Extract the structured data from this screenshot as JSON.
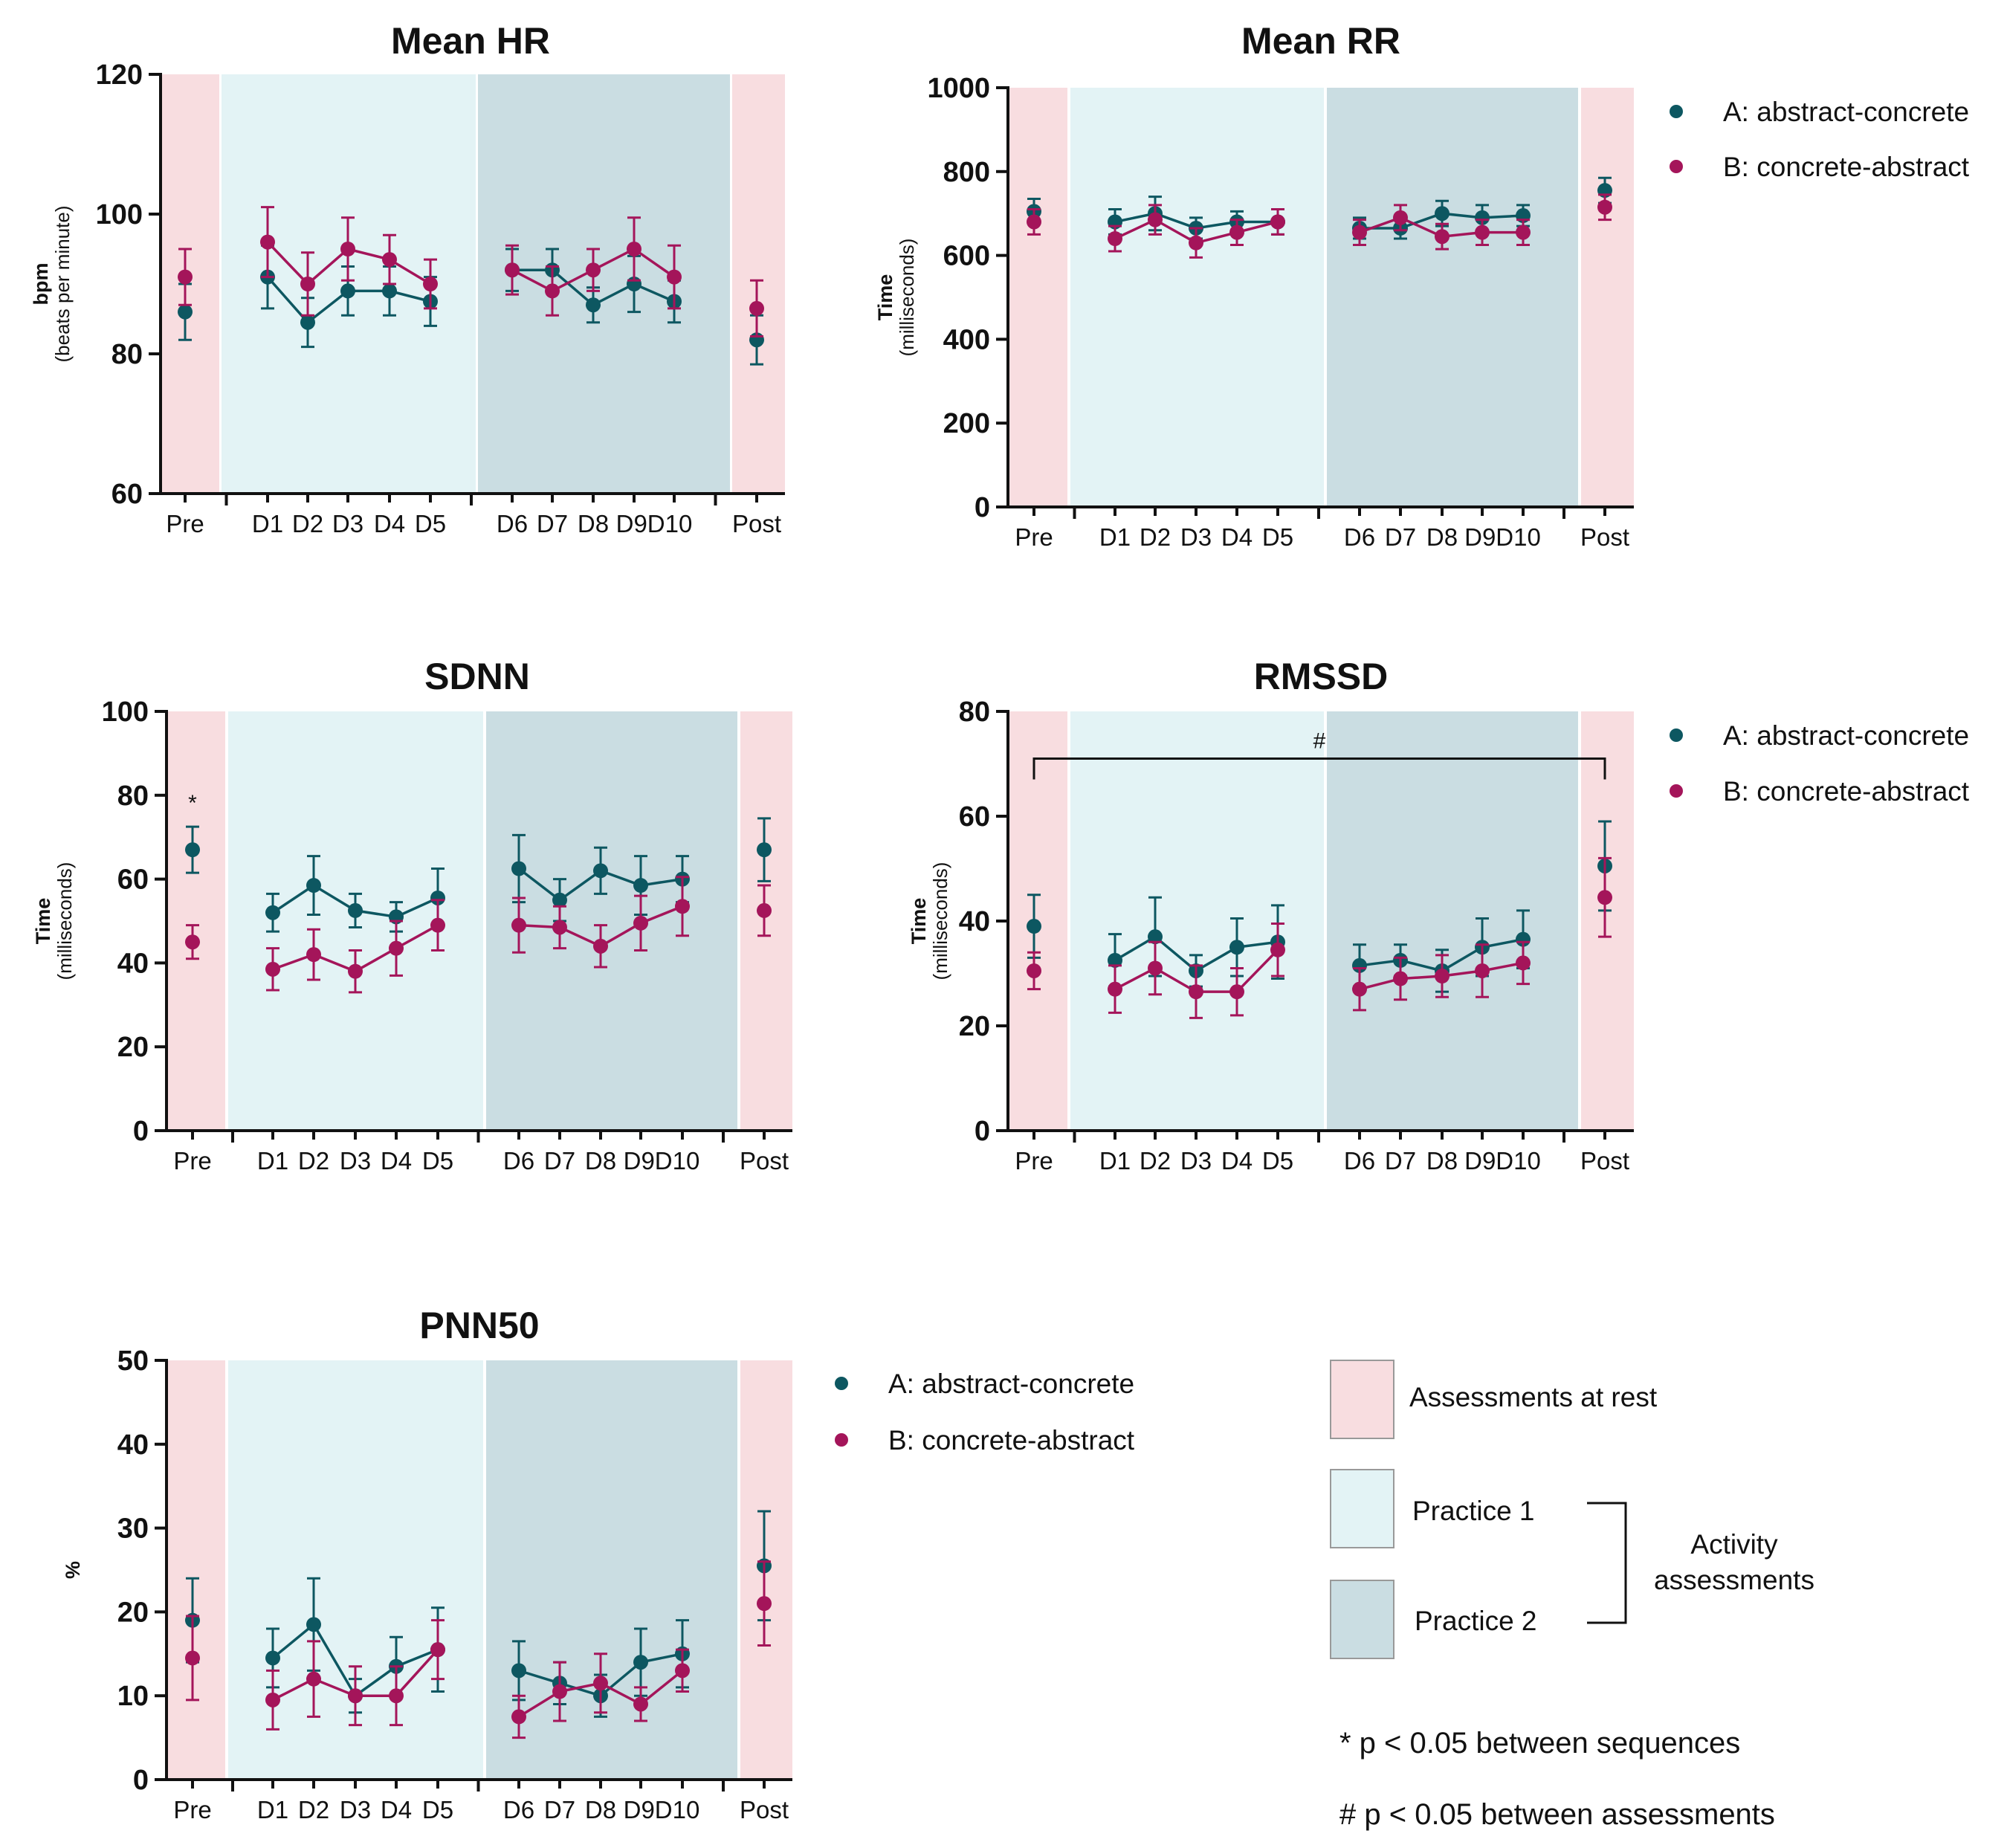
{
  "colors": {
    "rest_band": "#f8dde0",
    "practice1_band": "#e3f3f5",
    "practice2_band": "#cadde2",
    "series_a": "#0d5761",
    "series_b": "#a4155a",
    "axis": "#111111"
  },
  "legend": {
    "series": [
      {
        "name": "A: abstract-concrete",
        "color_key": "series_a"
      },
      {
        "name": "B: concrete-abstract",
        "color_key": "series_b"
      }
    ],
    "bands": {
      "rest": "Assessments at rest",
      "practice1": "Practice 1",
      "practice2": "Practice 2",
      "activity_line1": "Activity",
      "activity_line2": "assessments"
    },
    "notes": {
      "star": "* p < 0.05 between sequences",
      "hash": "# p < 0.05 between assessments"
    }
  },
  "chart_data": [
    {
      "type": "line",
      "title": "Mean HR",
      "ylabel": "bpm",
      "ylabel_sub": "(beats per minute)",
      "ylim": [
        60,
        120
      ],
      "yticks": [
        60,
        80,
        100,
        120
      ],
      "categories": [
        "Pre",
        "D1",
        "D2",
        "D3",
        "D4",
        "D5",
        "D6",
        "D7",
        "D8",
        "D9",
        "D10",
        "Post"
      ],
      "tick_labels": [
        "Pre",
        "D1",
        "D2",
        "D3",
        "D4",
        "D5",
        "D6",
        "D7",
        "D8",
        "D9D10",
        "",
        "Post"
      ],
      "series": [
        {
          "name": "A: abstract-concrete",
          "values": [
            86,
            91,
            84.5,
            89,
            89,
            87.5,
            92,
            92,
            87,
            90,
            87.5,
            82
          ],
          "errors": [
            4,
            4.5,
            3.5,
            3.5,
            3.5,
            3.5,
            3,
            3,
            2.5,
            4,
            3,
            3.5
          ]
        },
        {
          "name": "B: concrete-abstract",
          "values": [
            91,
            96,
            90,
            95,
            93.5,
            90,
            92,
            89,
            92,
            95,
            91,
            86.5
          ],
          "errors": [
            4,
            5,
            4.5,
            4.5,
            3.5,
            3.5,
            3.5,
            3.5,
            3,
            4.5,
            4.5,
            4
          ]
        }
      ],
      "annotations": []
    },
    {
      "type": "line",
      "title": "Mean RR",
      "ylabel": "Time",
      "ylabel_sub": "(milliseconds)",
      "ylim": [
        0,
        1000
      ],
      "yticks": [
        0,
        200,
        400,
        600,
        800,
        1000
      ],
      "categories": [
        "Pre",
        "D1",
        "D2",
        "D3",
        "D4",
        "D5",
        "D6",
        "D7",
        "D8",
        "D9",
        "D10",
        "Post"
      ],
      "tick_labels": [
        "Pre",
        "D1",
        "D2",
        "D3",
        "D4",
        "D5",
        "D6",
        "D7",
        "D8",
        "D9D10",
        "",
        "Post"
      ],
      "series": [
        {
          "name": "A: abstract-concrete",
          "values": [
            705,
            680,
            700,
            665,
            680,
            680,
            665,
            665,
            700,
            690,
            695,
            755
          ],
          "errors": [
            30,
            30,
            40,
            25,
            25,
            30,
            25,
            25,
            30,
            30,
            25,
            30
          ]
        },
        {
          "name": "B: concrete-abstract",
          "values": [
            680,
            640,
            685,
            630,
            655,
            680,
            655,
            690,
            645,
            655,
            655,
            715
          ],
          "errors": [
            30,
            30,
            35,
            35,
            30,
            30,
            30,
            30,
            30,
            30,
            30,
            30
          ]
        }
      ],
      "annotations": []
    },
    {
      "type": "line",
      "title": "SDNN",
      "ylabel": "Time",
      "ylabel_sub": "(milliseconds)",
      "ylim": [
        0,
        100
      ],
      "yticks": [
        0,
        20,
        40,
        60,
        80,
        100
      ],
      "categories": [
        "Pre",
        "D1",
        "D2",
        "D3",
        "D4",
        "D5",
        "D6",
        "D7",
        "D8",
        "D9",
        "D10",
        "Post"
      ],
      "tick_labels": [
        "Pre",
        "D1",
        "D2",
        "D3",
        "D4",
        "D5",
        "D6",
        "D7",
        "D8",
        "D9D10",
        "",
        "Post"
      ],
      "series": [
        {
          "name": "A: abstract-concrete",
          "values": [
            67,
            52,
            58.5,
            52.5,
            51,
            55.5,
            62.5,
            55,
            62,
            58.5,
            60,
            67
          ],
          "errors": [
            5.5,
            4.5,
            7,
            4,
            3.5,
            7,
            8,
            5,
            5.5,
            7,
            5.5,
            7.5
          ]
        },
        {
          "name": "B: concrete-abstract",
          "values": [
            45,
            38.5,
            42,
            38,
            43.5,
            49,
            49,
            48.5,
            44,
            49.5,
            53.5,
            52.5
          ],
          "errors": [
            4,
            5,
            6,
            5,
            6.5,
            6,
            6.5,
            5,
            5,
            6.5,
            7,
            6
          ]
        }
      ],
      "annotations": [
        {
          "text": "*",
          "category": "Pre"
        }
      ]
    },
    {
      "type": "line",
      "title": "RMSSD",
      "ylabel": "Time",
      "ylabel_sub": "(milliseconds)",
      "ylim": [
        0,
        80
      ],
      "yticks": [
        0,
        20,
        40,
        60,
        80
      ],
      "categories": [
        "Pre",
        "D1",
        "D2",
        "D3",
        "D4",
        "D5",
        "D6",
        "D7",
        "D8",
        "D9",
        "D10",
        "Post"
      ],
      "tick_labels": [
        "Pre",
        "D1",
        "D2",
        "D3",
        "D4",
        "D5",
        "D6",
        "D7",
        "D8",
        "D9D10",
        "",
        "Post"
      ],
      "series": [
        {
          "name": "A: abstract-concrete",
          "values": [
            39,
            32.5,
            37,
            30.5,
            35,
            36,
            31.5,
            32.5,
            30.5,
            35,
            36.5,
            50.5
          ],
          "errors": [
            6,
            5,
            7.5,
            3,
            5.5,
            7,
            4,
            3,
            4,
            5.5,
            5.5,
            8.5
          ]
        },
        {
          "name": "B: concrete-abstract",
          "values": [
            30.5,
            27,
            31,
            26.5,
            26.5,
            34.5,
            27,
            29,
            29.5,
            30.5,
            32,
            44.5
          ],
          "errors": [
            3.5,
            4.5,
            5,
            5,
            4.5,
            5,
            4,
            4,
            4,
            5,
            4,
            7.5
          ]
        }
      ],
      "annotations": [
        {
          "text": "#",
          "from": "Pre",
          "to": "Post"
        }
      ]
    },
    {
      "type": "line",
      "title": "PNN50",
      "ylabel": "%",
      "ylabel_sub": "",
      "ylim": [
        0,
        50
      ],
      "yticks": [
        0,
        10,
        20,
        30,
        40,
        50
      ],
      "categories": [
        "Pre",
        "D1",
        "D2",
        "D3",
        "D4",
        "D5",
        "D6",
        "D7",
        "D8",
        "D9",
        "D10",
        "Post"
      ],
      "tick_labels": [
        "Pre",
        "D1",
        "D2",
        "D3",
        "D4",
        "D5",
        "D6",
        "D7",
        "D8",
        "D9D10",
        "",
        "Post"
      ],
      "series": [
        {
          "name": "A: abstract-concrete",
          "values": [
            19,
            14.5,
            18.5,
            10,
            13.5,
            15.5,
            13,
            11.5,
            10,
            14,
            15,
            25.5
          ],
          "errors": [
            5,
            3.5,
            5.5,
            2,
            3.5,
            5,
            3.5,
            2.5,
            2.5,
            4,
            4,
            6.5
          ]
        },
        {
          "name": "B: concrete-abstract",
          "values": [
            14.5,
            9.5,
            12,
            10,
            10,
            15.5,
            7.5,
            10.5,
            11.5,
            9,
            13,
            21
          ],
          "errors": [
            5,
            3.5,
            4.5,
            3.5,
            3.5,
            3.5,
            2.5,
            3.5,
            3.5,
            2,
            2.5,
            5
          ]
        }
      ],
      "annotations": []
    }
  ]
}
